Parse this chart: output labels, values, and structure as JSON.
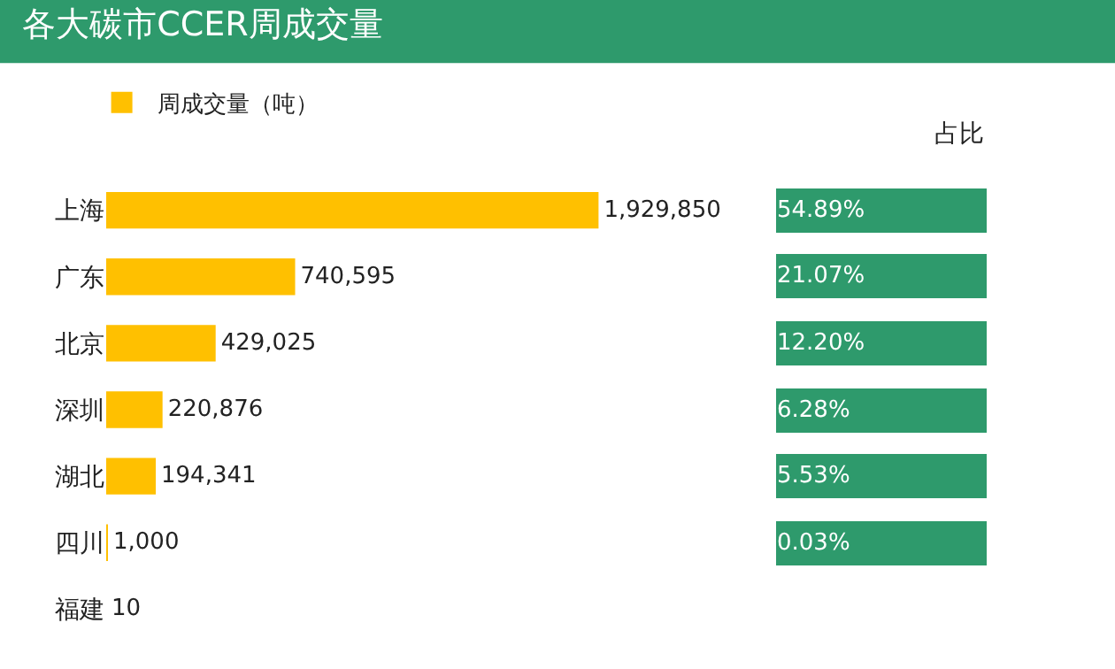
{
  "chart_data": {
    "type": "bar",
    "orientation": "horizontal",
    "title": "各大碳市CCER周成交量",
    "categories": [
      "上海",
      "广东",
      "北京",
      "深圳",
      "湖北",
      "四川",
      "福建"
    ],
    "series": [
      {
        "name": "周成交量（吨）",
        "color": "#ffc000",
        "values": [
          1929850,
          740595,
          429025,
          220876,
          194341,
          1000,
          10
        ],
        "value_labels": [
          "1,929,850",
          "740,595",
          "429,025",
          "220,876",
          "194,341",
          "1,000",
          "10"
        ]
      }
    ],
    "legend": "top left",
    "annotations": [
      "占比",
      "54.89%",
      "21.07%",
      "12.20%",
      "6.28%",
      "5.53%",
      "0.03%"
    ]
  }
}
